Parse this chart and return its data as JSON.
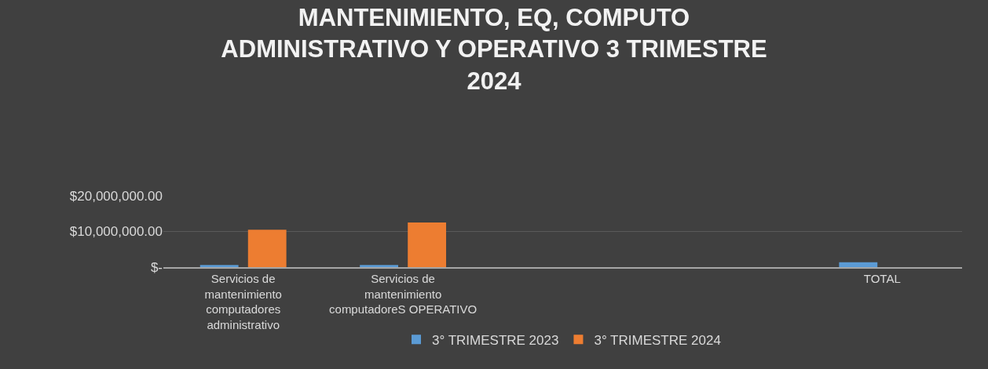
{
  "chart_data": {
    "type": "bar",
    "title": "MANTENIMIENTO, EQ, COMPUTO ADMINISTRATIVO Y OPERATIVO 3 TRIMESTRE 2024",
    "categories": [
      "Servicios de mantenimiento computadores administrativo",
      "Servicios de mantenimiento computadoreS OPERATIVO",
      null,
      null,
      "TOTAL"
    ],
    "series": [
      {
        "name": "3° TRIMESTRE 2023",
        "color": "#5b9bd5",
        "values": [
          600000,
          600000,
          null,
          null,
          1400000
        ]
      },
      {
        "name": "3° TRIMESTRE 2024",
        "color": "#ed7d31",
        "values": [
          10500000,
          12500000,
          null,
          null,
          null
        ]
      }
    ],
    "ylim": [
      0,
      20000000
    ],
    "yticks": [
      {
        "value": 0,
        "label": "$-"
      },
      {
        "value": 10000000,
        "label": "$10,000,000.00"
      },
      {
        "value": 20000000,
        "label": "$20,000,000.00"
      }
    ],
    "grid": "y",
    "legend": "bottom"
  }
}
